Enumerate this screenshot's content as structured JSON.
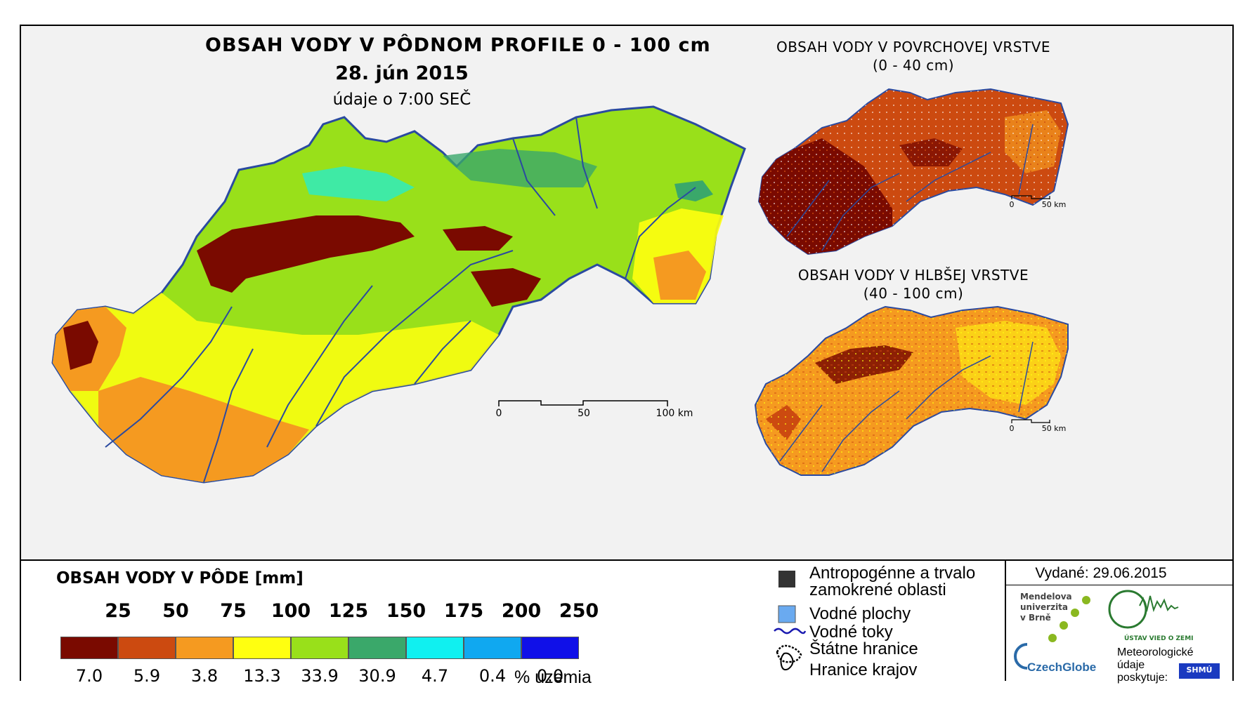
{
  "main_map": {
    "title": "OBSAH VODY V PÔDNOM PROFILE 0 - 100 cm",
    "date": "28. jún 2015",
    "time_note": "údaje o 7:00 SEČ",
    "scale": {
      "labels": [
        "0",
        "50",
        "100 km"
      ]
    }
  },
  "inset_surface": {
    "title_line1": "OBSAH VODY V POVRCHOVEJ VRSTVE",
    "title_line2": "(0 - 40 cm)",
    "scale": {
      "labels": [
        "0",
        "50 km"
      ]
    }
  },
  "inset_deep": {
    "title_line1": "OBSAH VODY V HLBŠEJ VRSTVE",
    "title_line2": "(40 - 100 cm)",
    "scale": {
      "labels": [
        "0",
        "50 km"
      ]
    }
  },
  "legend": {
    "title": "OBSAH VODY V PÔDE [mm]",
    "breaks": [
      "25",
      "50",
      "75",
      "100",
      "125",
      "150",
      "175",
      "200",
      "250"
    ],
    "classes": [
      {
        "color": "#7a0a00",
        "pct": "7.0"
      },
      {
        "color": "#cc4a10",
        "pct": "5.9"
      },
      {
        "color": "#f59a20",
        "pct": "3.8"
      },
      {
        "color": "#ffff10",
        "pct": "13.3"
      },
      {
        "color": "#99e01a",
        "pct": "33.9"
      },
      {
        "color": "#3aa86a",
        "pct": "30.9"
      },
      {
        "color": "#10f0f0",
        "pct": "4.7"
      },
      {
        "color": "#10a8f0",
        "pct": "0.4"
      },
      {
        "color": "#1010e8",
        "pct": "0.0"
      }
    ],
    "pct_unit": "% územia"
  },
  "key": {
    "anthropogenic_line1": "Antropogénne a trvalo",
    "anthropogenic_line2": "zamokrené oblasti",
    "water_bodies": "Vodné plochy",
    "rivers": "Vodné toky",
    "state_border": "Štátne hranice",
    "region_border": "Hranice krajov"
  },
  "issue": {
    "issued": "Vydané: 29.06.2015",
    "mendel_line1": "Mendelova",
    "mendel_line2": "univerzita",
    "mendel_line3": "v Brně",
    "czechglobe": "CzechGlobe",
    "ustav": "ÚSTAV VIED O ZEMI",
    "meteo_line1": "Meteorologické",
    "meteo_line2": "údaje",
    "meteo_line3": "poskytuje:",
    "shmu": "SHMÚ"
  }
}
